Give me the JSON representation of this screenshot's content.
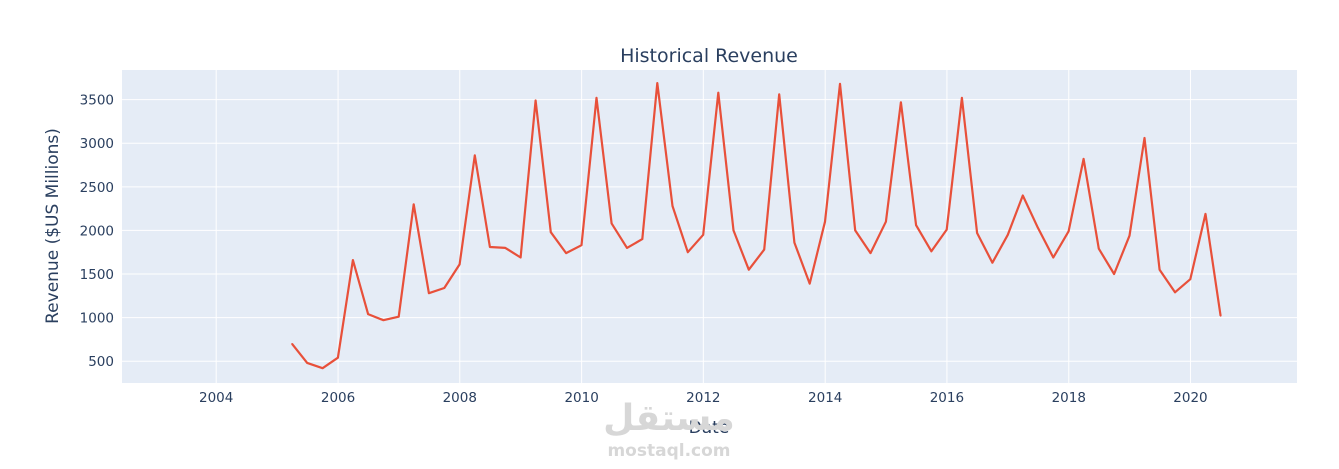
{
  "watermark": {
    "arabic": "مستقل",
    "latin": "mostaql.com"
  },
  "colors": {
    "plot_bg": "#e5ecf6",
    "grid": "#ffffff",
    "line": "#e8503a",
    "text": "#2a3f5f"
  },
  "chart_data": {
    "type": "line",
    "title": "Historical Revenue",
    "xlabel": "Date",
    "ylabel": "Revenue ($US Millions)",
    "x_axis_type": "date",
    "xlim": [
      "2002-06-15",
      "2021-10-01"
    ],
    "ylim": [
      250,
      3840
    ],
    "x_ticks": [
      "2004",
      "2006",
      "2008",
      "2010",
      "2012",
      "2014",
      "2016",
      "2018",
      "2020"
    ],
    "y_ticks": [
      500,
      1000,
      1500,
      2000,
      2500,
      3000,
      3500
    ],
    "grid": true,
    "legend": "none",
    "series": [
      {
        "x": [
          "2005-03-31",
          "2005-06-30",
          "2005-09-30",
          "2005-12-31",
          "2006-03-31",
          "2006-06-30",
          "2006-09-30",
          "2006-12-31",
          "2007-03-31",
          "2007-06-30",
          "2007-09-30",
          "2007-12-31",
          "2008-03-31",
          "2008-06-30",
          "2008-09-30",
          "2008-12-31",
          "2009-03-31",
          "2009-06-30",
          "2009-09-30",
          "2009-12-31",
          "2010-03-31",
          "2010-06-30",
          "2010-09-30",
          "2010-12-31",
          "2011-03-31",
          "2011-06-30",
          "2011-09-30",
          "2011-12-31",
          "2012-03-31",
          "2012-06-30",
          "2012-09-30",
          "2012-12-31",
          "2013-03-31",
          "2013-06-30",
          "2013-09-30",
          "2013-12-31",
          "2014-03-31",
          "2014-06-30",
          "2014-09-30",
          "2014-12-31",
          "2015-03-31",
          "2015-06-30",
          "2015-09-30",
          "2015-12-31",
          "2016-03-31",
          "2016-06-30",
          "2016-09-30",
          "2016-12-31",
          "2017-03-31",
          "2017-06-30",
          "2017-09-30",
          "2017-12-31",
          "2018-03-31",
          "2018-06-30",
          "2018-09-30",
          "2018-12-31",
          "2019-03-31",
          "2019-06-30",
          "2019-09-30",
          "2019-12-31",
          "2020-03-31",
          "2020-06-30"
        ],
        "values": [
          700,
          480,
          420,
          540,
          1660,
          1040,
          970,
          1010,
          2300,
          1280,
          1340,
          1610,
          2860,
          1810,
          1800,
          1690,
          3490,
          1980,
          1740,
          1830,
          3520,
          2080,
          1800,
          1900,
          3690,
          2280,
          1750,
          1950,
          3580,
          2000,
          1550,
          1780,
          3560,
          1860,
          1390,
          2100,
          3680,
          2000,
          1740,
          2100,
          3470,
          2060,
          1760,
          2010,
          3520,
          1970,
          1630,
          1950,
          2400,
          2030,
          1690,
          1990,
          2820,
          1790,
          1500,
          1940,
          3060,
          1550,
          1290,
          1440,
          2190,
          1020
        ]
      }
    ]
  }
}
